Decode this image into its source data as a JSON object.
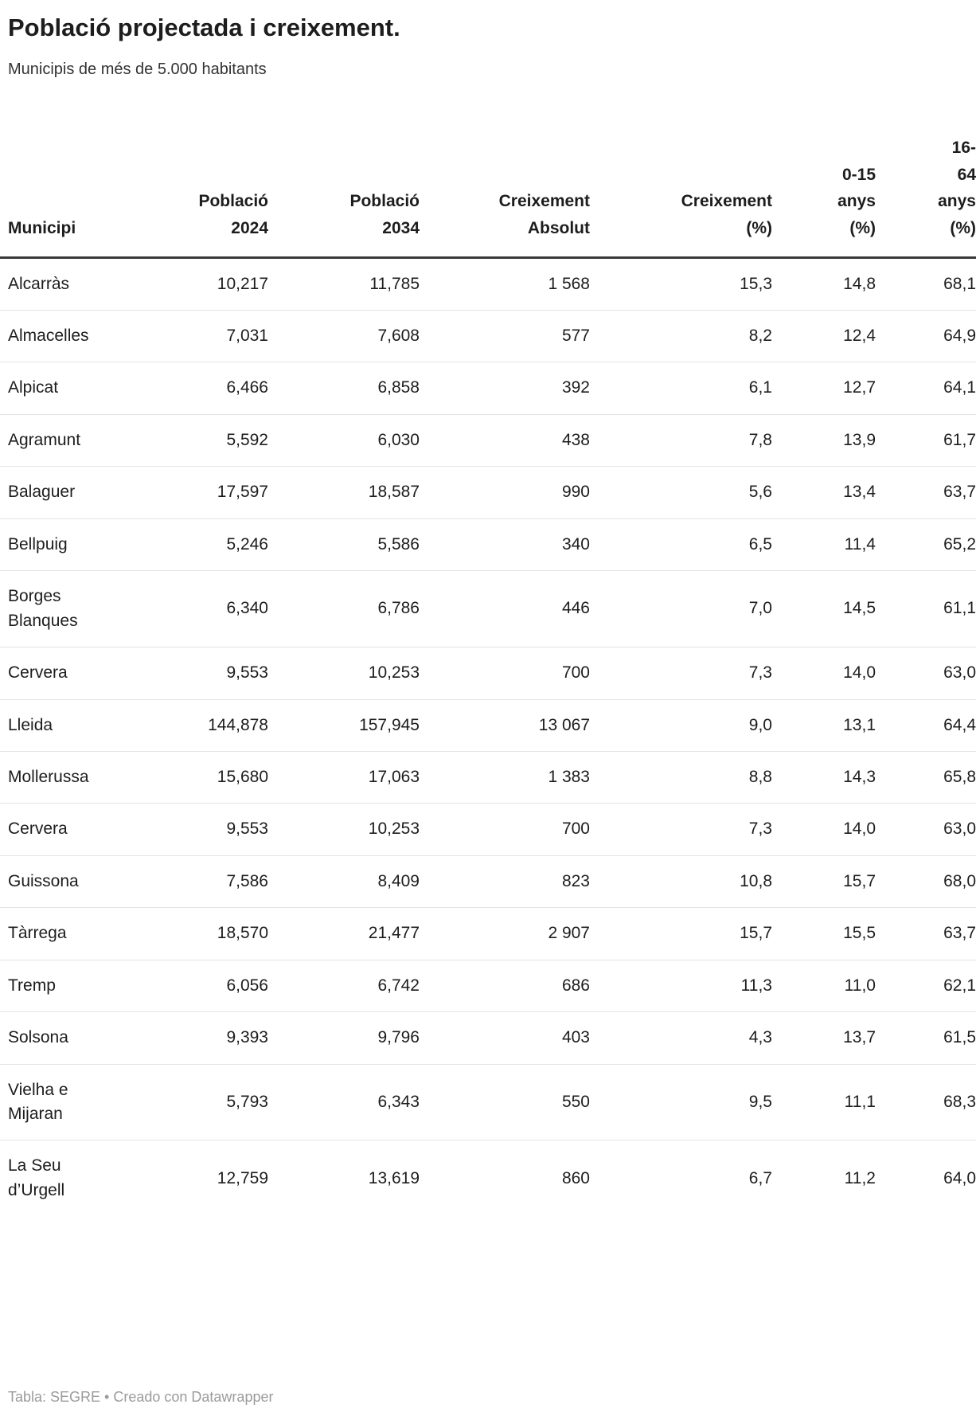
{
  "chart_data": {
    "type": "table",
    "title": "Població projectada i creixement.",
    "subtitle": "Municipis de més de 5.000 habitants",
    "columns": [
      "Municipi",
      "Població 2024",
      "Població 2034",
      "Creixement Absolut",
      "Creixement (%)",
      "0-15 anys (%)",
      "16-64 anys (%)"
    ],
    "rows": [
      [
        "Alcarràs",
        "10,217",
        "11,785",
        "1 568",
        "15,3",
        "14,8",
        "68,1"
      ],
      [
        "Almacelles",
        "7,031",
        "7,608",
        "577",
        "8,2",
        "12,4",
        "64,9"
      ],
      [
        "Alpicat",
        "6,466",
        "6,858",
        "392",
        "6,1",
        "12,7",
        "64,1"
      ],
      [
        "Agramunt",
        "5,592",
        "6,030",
        "438",
        "7,8",
        "13,9",
        "61,7"
      ],
      [
        "Balaguer",
        "17,597",
        "18,587",
        "990",
        "5,6",
        "13,4",
        "63,7"
      ],
      [
        "Bellpuig",
        "5,246",
        "5,586",
        "340",
        "6,5",
        "11,4",
        "65,2"
      ],
      [
        "Borges Blanques",
        "6,340",
        "6,786",
        "446",
        "7,0",
        "14,5",
        "61,1"
      ],
      [
        "Cervera",
        "9,553",
        "10,253",
        "700",
        "7,3",
        "14,0",
        "63,0"
      ],
      [
        "Lleida",
        "144,878",
        "157,945",
        "13 067",
        "9,0",
        "13,1",
        "64,4"
      ],
      [
        "Mollerussa",
        "15,680",
        "17,063",
        "1 383",
        "8,8",
        "14,3",
        "65,8"
      ],
      [
        "Cervera",
        "9,553",
        "10,253",
        "700",
        "7,3",
        "14,0",
        "63,0"
      ],
      [
        "Guissona",
        "7,586",
        "8,409",
        "823",
        "10,8",
        "15,7",
        "68,0"
      ],
      [
        "Tàrrega",
        "18,570",
        "21,477",
        "2 907",
        "15,7",
        "15,5",
        "63,7"
      ],
      [
        "Tremp",
        "6,056",
        "6,742",
        "686",
        "11,3",
        "11,0",
        "62,1"
      ],
      [
        "Solsona",
        "9,393",
        "9,796",
        "403",
        "4,3",
        "13,7",
        "61,5"
      ],
      [
        "Vielha e Mijaran",
        "5,793",
        "6,343",
        "550",
        "9,5",
        "11,1",
        "68,3"
      ],
      [
        "La Seu d’Urgell",
        "12,759",
        "13,619",
        "860",
        "6,7",
        "11,2",
        "64,0"
      ]
    ],
    "credit": "Tabla: SEGRE • Creado con Datawrapper",
    "layout_hints": {
      "last_column_clipped_at_right_edge": true,
      "numeric_columns_right_aligned": true
    },
    "colors": {
      "text": "#1d1d1d",
      "header_rule": "#393939",
      "row_rule": "#e4e4e4",
      "credit_text": "#9b9b9b"
    }
  }
}
